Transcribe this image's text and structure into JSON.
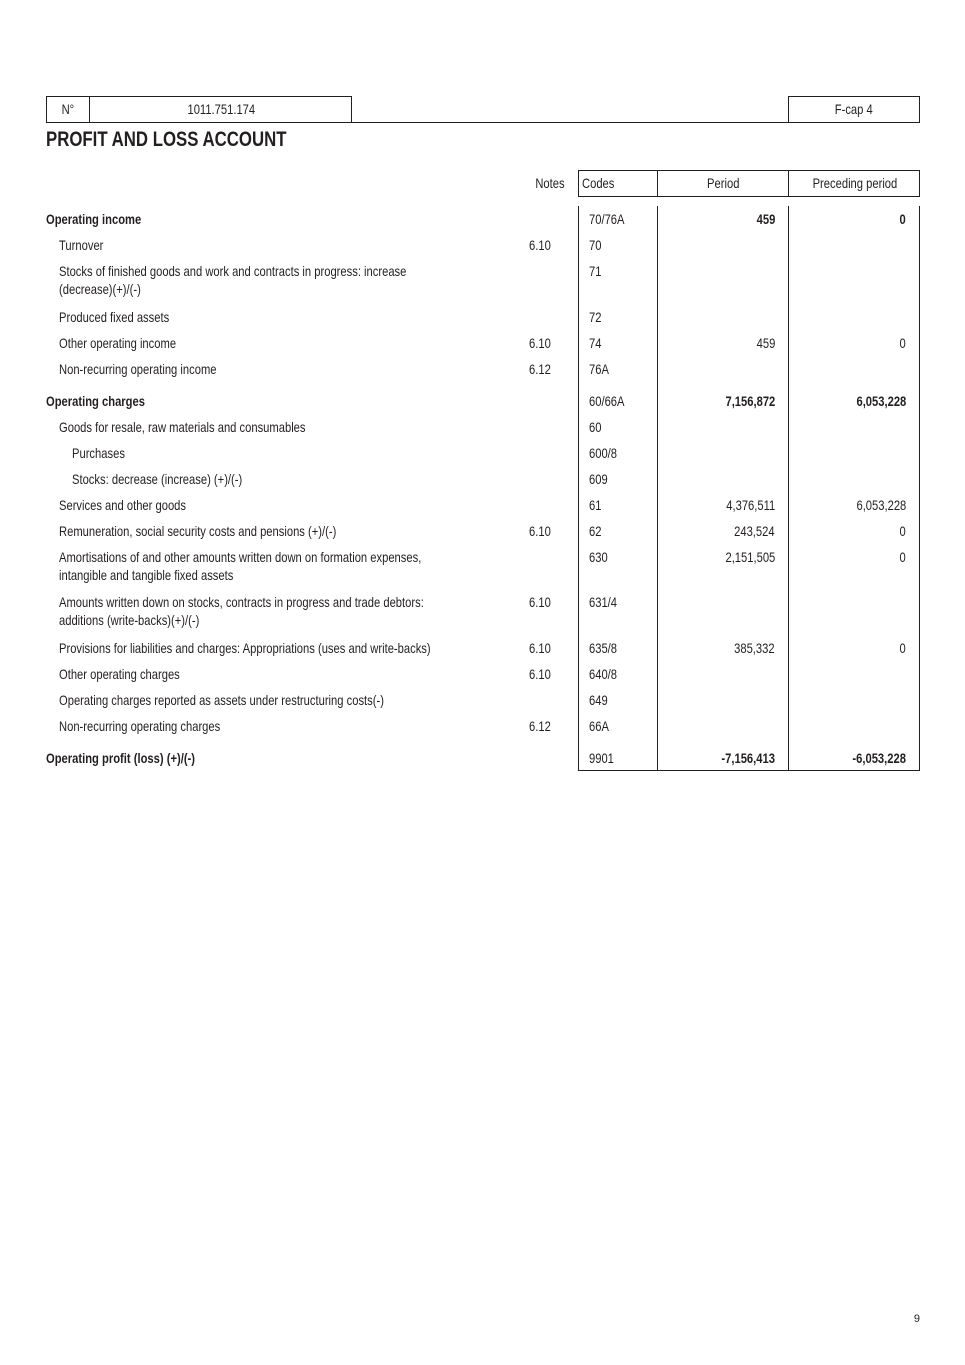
{
  "header": {
    "no_label": "N°",
    "company_number": "1011.751.174",
    "form_code": "F-cap 4"
  },
  "title": "PROFIT AND LOSS ACCOUNT",
  "columns": {
    "notes": "Notes",
    "codes": "Codes",
    "period": "Period",
    "preceding": "Preceding period"
  },
  "rows": [
    {
      "label": "Operating income",
      "note": "",
      "code": "70/76A",
      "period": "459",
      "preceding": "0"
    },
    {
      "label": "Turnover",
      "note": "6.10",
      "code": "70",
      "period": "",
      "preceding": ""
    },
    {
      "label": "Stocks of finished goods and work and contracts in progress: increase",
      "label2": "(decrease)(+)/(-)",
      "note": "",
      "code": "71",
      "period": "",
      "preceding": ""
    },
    {
      "label": "Produced fixed assets",
      "note": "",
      "code": "72",
      "period": "",
      "preceding": ""
    },
    {
      "label": "Other operating income",
      "note": "6.10",
      "code": "74",
      "period": "459",
      "preceding": "0"
    },
    {
      "label": "Non-recurring operating income",
      "note": "6.12",
      "code": "76A",
      "period": "",
      "preceding": ""
    },
    {
      "label": "Operating charges",
      "note": "",
      "code": "60/66A",
      "period": "7,156,872",
      "preceding": "6,053,228"
    },
    {
      "label": "Goods for resale, raw materials and consumables",
      "note": "",
      "code": "60",
      "period": "",
      "preceding": ""
    },
    {
      "label": "Purchases",
      "note": "",
      "code": "600/8",
      "period": "",
      "preceding": ""
    },
    {
      "label": "Stocks: decrease (increase) (+)/(-)",
      "note": "",
      "code": "609",
      "period": "",
      "preceding": ""
    },
    {
      "label": "Services and other goods",
      "note": "",
      "code": "61",
      "period": "4,376,511",
      "preceding": "6,053,228"
    },
    {
      "label": "Remuneration, social security costs and pensions (+)/(-)",
      "note": "6.10",
      "code": "62",
      "period": "243,524",
      "preceding": "0"
    },
    {
      "label": "Amortisations of and other amounts written down on formation expenses,",
      "label2": "intangible and tangible fixed assets",
      "note": "",
      "code": "630",
      "period": "2,151,505",
      "preceding": "0"
    },
    {
      "label": "Amounts written down on stocks, contracts in progress and trade debtors:",
      "label2": "additions (write-backs)(+)/(-)",
      "note": "6.10",
      "code": "631/4",
      "period": "",
      "preceding": ""
    },
    {
      "label": "Provisions for liabilities and charges: Appropriations (uses and write-backs)",
      "note": "6.10",
      "code": "635/8",
      "period": "385,332",
      "preceding": "0"
    },
    {
      "label": "Other operating charges",
      "note": "6.10",
      "code": "640/8",
      "period": "",
      "preceding": ""
    },
    {
      "label": "Operating charges reported as assets under restructuring costs(-)",
      "note": "",
      "code": "649",
      "period": "",
      "preceding": ""
    },
    {
      "label": "Non-recurring operating charges",
      "note": "6.12",
      "code": "66A",
      "period": "",
      "preceding": ""
    },
    {
      "label": "Operating profit (loss) (+)/(-)",
      "note": "",
      "code": "9901",
      "period": "-7,156,413",
      "preceding": "-6,053,228"
    }
  ],
  "page_number": "9"
}
